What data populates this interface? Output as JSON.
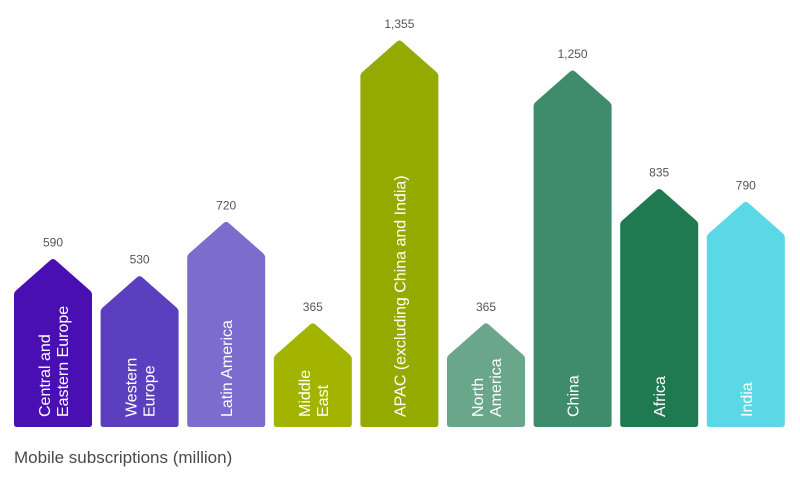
{
  "chart_data": {
    "type": "bar",
    "xlabel": "Mobile subscriptions (million)",
    "ylabel": "",
    "ylim": [
      0,
      1355
    ],
    "grid": false,
    "legend": "none",
    "categories": [
      {
        "label_lines": [
          "Central and",
          "Eastern Europe"
        ],
        "value": 590,
        "value_label": "590",
        "color": "#4a0fb2",
        "text_color": "#ffffff"
      },
      {
        "label_lines": [
          "Western",
          "Europe"
        ],
        "value": 530,
        "value_label": "530",
        "color": "#5b3fbf",
        "text_color": "#ffffff"
      },
      {
        "label_lines": [
          "Latin America"
        ],
        "value": 720,
        "value_label": "720",
        "color": "#7b6cce",
        "text_color": "#ffffff"
      },
      {
        "label_lines": [
          "Middle",
          "East"
        ],
        "value": 365,
        "value_label": "365",
        "color": "#a3b400",
        "text_color": "#ffffff"
      },
      {
        "label_lines": [
          "APAC (excluding China and India)"
        ],
        "value": 1355,
        "value_label": "1,355",
        "color": "#95aa00",
        "text_color": "#ffffff"
      },
      {
        "label_lines": [
          "North",
          "America"
        ],
        "value": 365,
        "value_label": "365",
        "color": "#6aa68a",
        "text_color": "#ffffff"
      },
      {
        "label_lines": [
          "China"
        ],
        "value": 1250,
        "value_label": "1,250",
        "color": "#3f8c6d",
        "text_color": "#ffffff"
      },
      {
        "label_lines": [
          "Africa"
        ],
        "value": 835,
        "value_label": "835",
        "color": "#1f7a52",
        "text_color": "#ffffff"
      },
      {
        "label_lines": [
          "India"
        ],
        "value": 790,
        "value_label": "790",
        "color": "#5ad8e6",
        "text_color": "#ffffff"
      }
    ]
  }
}
